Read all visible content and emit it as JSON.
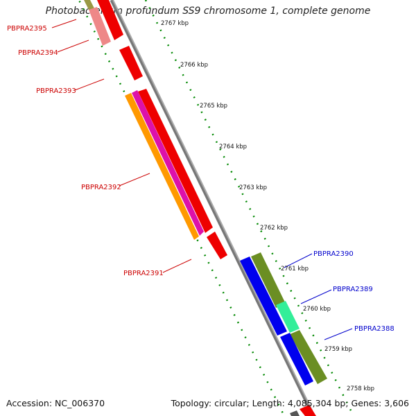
{
  "title": "Photobacterium profundum SS9 chromosome 1, complete genome",
  "accession_text": "Accession: NC_006370",
  "topology_text": "Topology: circular; Length: 4,085,304 bp; Genes: 3,606",
  "scale_labels": [
    "2767 kbp",
    "2766 kbp",
    "2765 kbp",
    "2764 kbp",
    "2763 kbp",
    "2762 kbp",
    "2761 kbp",
    "2760 kbp",
    "2759 kbp",
    "2758 kbp"
  ],
  "genes_reverse": [
    "PBPRA2395",
    "PBPRA2394",
    "PBPRA2393",
    "PBPRA2392",
    "PBPRA2391"
  ],
  "genes_forward": [
    "PBPRA2390",
    "PBPRA2389",
    "PBPRA2388"
  ],
  "colors": {
    "reverse_label": "#cc0000",
    "forward_label": "#0000cc",
    "backbone": "#8a8a8a",
    "gene_red": "#ee0000",
    "gene_pink": "#ee8888",
    "gene_magenta": "#dd11aa",
    "gene_orange": "#ff9900",
    "gene_blue": "#0000ee",
    "gene_olive": "#6b8e23",
    "gene_mint": "#33ee99",
    "tick_green": "#007700"
  }
}
